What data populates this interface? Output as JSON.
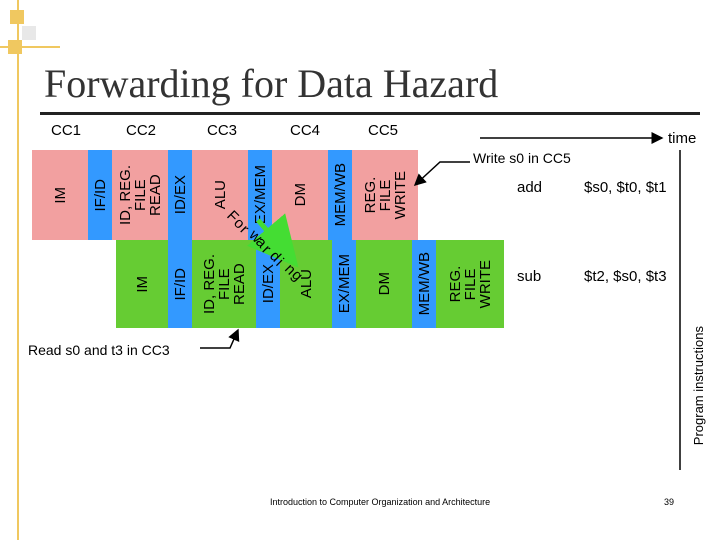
{
  "title": "Forwarding for Data Hazard",
  "clock_cycles": [
    "CC1",
    "CC2",
    "CC3",
    "CC4",
    "CC5"
  ],
  "time_label": "time",
  "axis_label": "Program instructions",
  "pipeline_rows": [
    {
      "instruction": "add",
      "operands": "$s0, $t0, $t1",
      "stages": [
        {
          "label": "IM",
          "color": "#f2a0a0"
        },
        {
          "label": "IF/ID",
          "color": "#3399ff"
        },
        {
          "label": "ID, REG.\nFILE\nREAD",
          "color": "#f2a0a0"
        },
        {
          "label": "ID/EX",
          "color": "#3399ff"
        },
        {
          "label": "ALU",
          "color": "#f2a0a0"
        },
        {
          "label": "EX/MEM",
          "color": "#3399ff"
        },
        {
          "label": "DM",
          "color": "#f2a0a0"
        },
        {
          "label": "MEM/WB",
          "color": "#3399ff"
        },
        {
          "label": "REG.\nFILE\nWRITE",
          "color": "#f2a0a0"
        }
      ]
    },
    {
      "instruction": "sub",
      "operands": "$t2, $s0, $t3",
      "stages": [
        {
          "label": "IM",
          "color": "#66cc33"
        },
        {
          "label": "IF/ID",
          "color": "#3399ff"
        },
        {
          "label": "ID, REG.\nFILE\nREAD",
          "color": "#66cc33"
        },
        {
          "label": "ID/EX",
          "color": "#3399ff"
        },
        {
          "label": "ALU",
          "color": "#66cc33"
        },
        {
          "label": "EX/MEM",
          "color": "#3399ff"
        },
        {
          "label": "DM",
          "color": "#66cc33"
        },
        {
          "label": "MEM/WB",
          "color": "#3399ff"
        },
        {
          "label": "REG.\nFILE\nWRITE",
          "color": "#66cc33"
        }
      ]
    }
  ],
  "annotations": {
    "write": "Write s0 in CC5",
    "read": "Read s0 and t3 in CC3",
    "forwarding": "Forwarding"
  },
  "footer": {
    "course": "Introduction to Computer Organization and Architecture",
    "page": "39"
  },
  "colors": {
    "accent_square": "#f0c860",
    "accent_square_2": "#e0e0e0",
    "stage_row1": "#f2a0a0",
    "stage_row2": "#66cc33",
    "register": "#3399ff",
    "forward_arrow": "#44dd33"
  }
}
